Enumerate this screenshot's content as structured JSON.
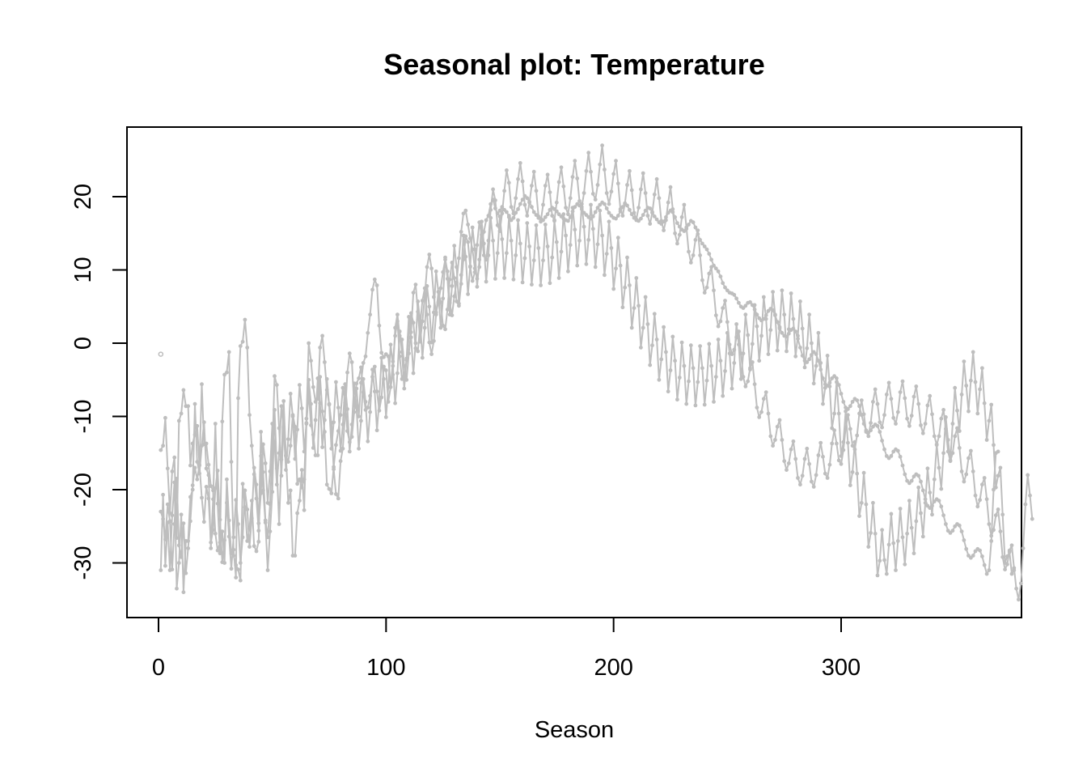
{
  "chart_data": {
    "type": "line",
    "title": "Seasonal plot: Temperature",
    "xlabel": "Season",
    "ylabel": "",
    "xlim": [
      1,
      365
    ],
    "ylim": [
      -35,
      27
    ],
    "x_ticks": [
      0,
      100,
      200,
      300
    ],
    "y_ticks": [
      -30,
      -20,
      -10,
      0,
      10,
      20
    ],
    "x_tick_labels": [
      "0",
      "100",
      "200",
      "300"
    ],
    "y_tick_labels": [
      "-30",
      "-20",
      "-10",
      "0",
      "10",
      "20"
    ],
    "grid": false,
    "legend": "none",
    "series_color": "#bebebe",
    "series": [
      {
        "start_x": 1,
        "values": [
          -1.5
        ]
      },
      {
        "start_x": 1,
        "values": [
          -14.6,
          -14.0,
          -10.2,
          -17.1,
          -23.2,
          -17.5,
          -15.6,
          -26.6,
          -10.6,
          -9.6,
          -6.4,
          -8.6,
          -8.6,
          -16.7,
          -13.7,
          -12.5,
          -11.3,
          -16.7,
          -5.6,
          -13.8,
          -13.7,
          -16.6,
          -19.5,
          -20.1,
          -26.0,
          -28.3,
          -27.2,
          -10.7,
          -4.3,
          -4.0,
          -1.2,
          -16.2,
          -28.2,
          -32.0,
          -7.5,
          -0.4,
          0.2,
          3.2,
          -0.6,
          -9.8,
          -14.0,
          -17.9,
          -21.2,
          -25.6,
          -12.1,
          -17.6,
          -24.2,
          -26.5,
          -22.0,
          -14.8,
          -4.5,
          -5.7,
          -11.6,
          -18.1,
          -11.4,
          -15.4,
          -16.2,
          -14.0,
          -9.8,
          -11.4,
          -19.2,
          -18.6,
          -19.7,
          -18.6,
          -10.3,
          0.0,
          -2.4,
          -6.0,
          -8.0,
          -7.6,
          -0.6,
          1.0,
          -2.6,
          -6.4,
          -8.3,
          -10.9,
          -17.2,
          -20.6,
          -21.2,
          -16.1,
          -14.4,
          -9.7,
          -4.0,
          -1.4,
          -2.6,
          -8.5,
          -6.2,
          -10.0,
          -5.4,
          -2.7,
          -1.8,
          1.4,
          3.9,
          7.3,
          8.7,
          7.9,
          2.4,
          -1.3,
          -1.9,
          -1.5,
          -1.8,
          -6.0,
          -4.3,
          2.1,
          3.9,
          1.0,
          0.5,
          -3.1,
          -5.0,
          -1.4,
          1.5,
          6.9,
          8.0,
          4.3,
          0.2,
          3.0,
          6.4,
          10.4,
          12.1,
          10.2,
          6.3,
          4.2,
          5.6,
          7.5,
          9.7,
          11.4,
          9.8,
          5.5,
          3.8,
          6.4,
          8.3,
          11.6,
          15.2,
          17.7,
          18.1,
          16.2,
          14.3,
          12.8,
          10.2,
          8.8,
          10.4,
          13.6,
          15.2,
          16.8,
          17.4,
          19.0,
          19.6,
          18.4,
          17.7,
          18.1,
          18.6,
          18.2,
          17.9,
          17.4,
          16.8,
          17.1,
          17.8,
          18.3,
          19.0,
          19.6,
          20.1,
          19.8,
          19.3,
          18.6,
          17.9,
          17.5,
          17.1,
          17.0,
          16.8,
          17.2,
          17.6,
          18.2,
          18.5,
          18.3,
          18.0,
          17.6,
          17.3,
          17.0,
          16.8,
          16.7,
          17.2,
          18.0,
          18.6,
          19.0,
          18.8,
          18.3,
          17.8,
          17.5,
          17.2,
          17.0,
          17.3,
          17.9,
          18.5,
          18.9,
          19.2,
          19.0,
          18.4,
          17.8,
          17.4,
          17.1,
          17.0,
          17.4,
          18.0,
          18.6,
          19.0,
          18.8,
          18.2,
          17.6,
          17.1,
          16.8,
          16.7,
          17.0,
          17.5,
          18.1,
          18.5,
          18.4,
          17.9,
          17.3,
          16.9,
          16.5,
          16.3,
          16.6,
          17.2,
          17.8,
          18.1,
          17.9,
          17.2,
          16.4,
          15.9,
          15.5,
          15.3,
          15.6,
          16.2,
          16.7,
          16.5,
          15.8,
          14.9,
          14.1,
          13.6,
          13.2,
          12.8,
          12.2,
          11.4,
          10.6,
          10.2,
          9.8,
          9.1,
          8.2,
          7.6,
          7.2,
          6.9,
          6.8,
          6.6,
          6.1,
          5.5,
          5.0,
          4.8,
          5.1,
          5.5,
          5.6,
          5.2,
          4.6,
          3.9,
          3.4,
          3.1,
          3.3,
          3.8,
          4.4,
          4.7,
          4.5,
          3.8,
          2.9,
          2.0,
          1.4,
          1.0,
          0.9,
          1.3,
          1.8,
          2.0,
          1.6,
          0.6,
          -0.6,
          -1.7,
          -2.4,
          -2.6,
          -2.2,
          -1.6,
          -1.2,
          -1.5,
          -2.4,
          -3.6,
          -4.8,
          -5.6,
          -5.8,
          -5.4,
          -4.8,
          -4.5,
          -4.8,
          -5.7,
          -6.9,
          -8.0,
          -8.8,
          -9.0,
          -8.6,
          -8.0,
          -7.6,
          -7.8,
          -8.6,
          -9.8,
          -11.0,
          -11.9,
          -12.2,
          -11.9,
          -11.4,
          -11.1,
          -11.3,
          -12.1,
          -13.3,
          -14.5,
          -15.4,
          -15.7,
          -15.4,
          -14.8,
          -14.5,
          -14.7,
          -15.5,
          -16.7,
          -17.9,
          -18.8,
          -19.1,
          -18.8,
          -18.2,
          -17.9,
          -18.1,
          -18.9,
          -20.1,
          -21.3,
          -22.2,
          -22.5,
          -22.2,
          -21.6,
          -21.3,
          -21.5,
          -22.3,
          -23.5,
          -24.7,
          -25.6,
          -25.9,
          -25.6,
          -25.0,
          -24.7,
          -24.9,
          -25.7,
          -26.9,
          -28.1,
          -29.0,
          -29.3,
          -29.0,
          -28.4,
          -28.1,
          -28.3,
          -29.1,
          -30.3,
          -31.5,
          -31.0,
          -27.0,
          -20.0,
          -15.0,
          -14.8
        ]
      },
      {
        "start_x": 1,
        "values": [
          -31.0,
          -20.7,
          -30.4,
          -24.5,
          -31.0,
          -23.5,
          -19.0,
          -33.5,
          -30.0,
          -23.4,
          -34.0,
          -27.0,
          -27.0,
          -21.0,
          -20.0,
          -8.3,
          -16.2,
          -17.8,
          -14.0,
          -10.8,
          -17.1,
          -18.0,
          -28.0,
          -21.3,
          -11.0,
          -21.9,
          -28.7,
          -25.7,
          -30.0,
          -18.6,
          -24.2,
          -28.7,
          -29.0,
          -30.3,
          -30.9,
          -32.4,
          -19.2,
          -22.4,
          -27.0,
          -25.3,
          -21.5,
          -27.7,
          -28.4,
          -27.1,
          -15.4,
          -20.1,
          -24.5,
          -31.0,
          -25.7,
          -20.3,
          -9.1,
          -17.1,
          -24.7,
          -15.9,
          -7.9,
          -15.3,
          -21.8,
          -20.1,
          -29.0,
          -29.0,
          -23.2,
          -21.5,
          -17.3,
          -22.8,
          -11.0,
          -6.7,
          -11.2,
          -12.5,
          -15.3,
          -15.3,
          -4.6,
          -9.3,
          -12.1,
          -19.3,
          -19.9,
          -20.5,
          -16.9,
          -13.9,
          -12.0,
          -9.8,
          -6.1,
          -8.1,
          -12.0,
          -13.5,
          -12.8,
          -9.4,
          -5.5,
          -4.8,
          -3.3,
          -6.7,
          -9.1,
          -8.8,
          -7.2,
          -4.6,
          -3.2,
          -6.6,
          -9.2,
          -7.4,
          -3.2,
          -3.7,
          -8.0,
          -6.0,
          -2.5,
          1.0,
          3.0,
          -1.8,
          -4.9,
          -4.5,
          -2.3,
          0.8,
          4.1,
          2.8,
          -0.7,
          -1.1,
          2.6,
          5.8,
          7.5,
          3.9,
          0.1,
          -1.5,
          0.3,
          3.9,
          7.0,
          5.6,
          2.4,
          1.9,
          4.6,
          8.7,
          11.0,
          8.9,
          5.7,
          5.1,
          8.1,
          11.4,
          14.6,
          13.8,
          10.4,
          8.5,
          9.7,
          13.4,
          16.5,
          14.8,
          12.0,
          11.4,
          14.0,
          18.2,
          21.0,
          19.5,
          16.1,
          15.3,
          17.7,
          20.8,
          23.6,
          21.9,
          18.6,
          17.7,
          19.8,
          22.4,
          24.6,
          22.1,
          18.9,
          17.4,
          19.2,
          21.5,
          23.4,
          20.8,
          17.3,
          16.6,
          18.9,
          21.5,
          23.0,
          20.6,
          17.4,
          16.8,
          19.2,
          22.0,
          24.0,
          21.4,
          18.5,
          17.6,
          19.8,
          22.7,
          24.9,
          22.5,
          19.4,
          18.6,
          20.5,
          23.5,
          26.0,
          23.4,
          20.4,
          19.6,
          21.6,
          24.4,
          27.0,
          23.7,
          20.5,
          19.0,
          20.7,
          23.1,
          24.9,
          21.8,
          18.3,
          17.4,
          19.1,
          21.6,
          23.5,
          20.9,
          17.8,
          16.9,
          18.5,
          21.0,
          23.2,
          20.5,
          17.4,
          16.3,
          17.8,
          20.3,
          22.4,
          19.8,
          16.7,
          15.4,
          16.8,
          19.2,
          21.3,
          18.3,
          15.0,
          13.6,
          14.8,
          17.2,
          18.9,
          15.8,
          12.5,
          11.0,
          12.0,
          14.1,
          15.4,
          12.0,
          8.6,
          6.9,
          7.6,
          9.5,
          10.4,
          7.2,
          3.8,
          2.3,
          3.0,
          4.8,
          5.8,
          2.9,
          -0.2,
          -1.5,
          -0.9,
          0.8,
          1.6,
          -1.4,
          -4.6,
          -5.9,
          -5.2,
          -3.4,
          -2.6,
          -5.6,
          -8.8,
          -10.1,
          -9.4,
          -7.6,
          -6.7,
          -9.6,
          -12.7,
          -14.0,
          -13.2,
          -11.4,
          -10.5,
          -13.2,
          -16.1,
          -17.3,
          -16.4,
          -14.5,
          -13.4,
          -15.8,
          -18.4,
          -19.3,
          -18.1,
          -15.8,
          -14.4,
          -16.5,
          -18.9,
          -19.6,
          -18.0,
          -15.3,
          -13.6,
          -15.5,
          -17.8,
          -18.4,
          -16.6,
          -13.7,
          -11.9,
          -13.7,
          -16.0,
          -16.5,
          -14.6,
          -11.6,
          -9.8,
          -11.7,
          -14.0,
          -14.5,
          -12.6,
          -9.6,
          -7.8,
          -9.7,
          -12.1,
          -12.7,
          -10.9,
          -8.0,
          -6.3,
          -8.3,
          -10.8,
          -11.5,
          -9.8,
          -7.0,
          -5.4,
          -7.6,
          -10.2,
          -11.0,
          -9.4,
          -6.7,
          -5.2,
          -7.5,
          -10.3,
          -11.3,
          -9.9,
          -7.3,
          -5.9,
          -8.3,
          -11.2,
          -12.3,
          -11.0,
          -8.5,
          -7.2,
          -9.7,
          -12.7,
          -13.9,
          -12.7,
          -10.3,
          -9.1,
          -11.7,
          -14.8,
          -16.1,
          -15.0,
          -12.7,
          -11.6,
          -14.3,
          -17.5,
          -18.9,
          -17.9,
          -15.7,
          -14.7,
          -17.5,
          -20.8,
          -22.3,
          -21.4,
          -19.3,
          -18.4,
          -21.3,
          -24.7,
          -26.3,
          -25.5,
          -23.5,
          -22.7,
          -25.7,
          -29.2,
          -30.9,
          -30.2,
          -28.3,
          -27.6,
          -30.7,
          -33.5,
          -35.0,
          -32.8,
          -28.0,
          -22.0,
          -18.0,
          -20.8,
          -24.0
        ]
      },
      {
        "start_x": 1,
        "values": [
          -23.0,
          -24.0,
          -26.8,
          -22.0,
          -24.3,
          -30.9,
          -24.7,
          -18.5,
          -27.6,
          -29.2,
          -24.6,
          -31.4,
          -28.0,
          -24.3,
          -19.4,
          -17.0,
          -18.6,
          -16.6,
          -21.1,
          -24.4,
          -19.6,
          -21.2,
          -27.2,
          -25.5,
          -19.8,
          -17.4,
          -24.1,
          -29.9,
          -26.9,
          -21.8,
          -26.4,
          -30.8,
          -26.5,
          -21.4,
          -24.7,
          -30.0,
          -26.5,
          -20.1,
          -22.7,
          -27.8,
          -23.9,
          -17.0,
          -19.3,
          -24.6,
          -20.5,
          -13.8,
          -16.4,
          -21.8,
          -17.5,
          -11.0,
          -13.8,
          -19.3,
          -15.0,
          -8.6,
          -11.6,
          -17.3,
          -13.1,
          -6.9,
          -10.0,
          -15.8,
          -11.8,
          -5.7,
          -8.9,
          -14.8,
          -10.9,
          -5.0,
          -8.3,
          -14.3,
          -10.5,
          -4.8,
          -8.2,
          -14.2,
          -10.5,
          -4.9,
          -8.4,
          -14.4,
          -10.8,
          -5.3,
          -8.8,
          -14.7,
          -11.1,
          -5.6,
          -9.0,
          -14.8,
          -11.1,
          -5.5,
          -8.8,
          -14.4,
          -10.6,
          -4.9,
          -8.0,
          -13.4,
          -9.4,
          -3.6,
          -6.6,
          -11.9,
          -7.8,
          -2.0,
          -4.9,
          -10.1,
          -6.0,
          -0.2,
          -3.1,
          -8.2,
          -4.1,
          1.6,
          -1.2,
          -6.2,
          -2.1,
          3.6,
          0.8,
          -4.1,
          0.0,
          5.7,
          2.9,
          -2.0,
          2.1,
          7.8,
          5.0,
          0.1,
          4.2,
          9.8,
          7.0,
          2.1,
          6.1,
          11.7,
          8.8,
          3.9,
          7.8,
          13.3,
          10.4,
          5.4,
          9.3,
          14.7,
          11.8,
          6.7,
          10.5,
          15.8,
          12.8,
          7.7,
          11.4,
          16.6,
          13.6,
          8.4,
          12.0,
          17.1,
          14.0,
          8.8,
          12.3,
          17.3,
          14.2,
          8.9,
          12.3,
          17.2,
          14.0,
          8.7,
          12.0,
          16.8,
          13.6,
          8.3,
          11.6,
          16.4,
          13.2,
          8.0,
          11.3,
          16.1,
          13.0,
          7.9,
          11.3,
          16.2,
          13.2,
          8.2,
          11.7,
          16.7,
          13.8,
          8.9,
          12.5,
          17.6,
          14.7,
          9.8,
          13.4,
          18.5,
          15.5,
          10.6,
          14.0,
          19.0,
          15.9,
          10.8,
          14.1,
          18.9,
          15.6,
          10.4,
          13.5,
          18.1,
          14.7,
          9.3,
          12.2,
          16.6,
          13.0,
          7.4,
          10.2,
          14.4,
          10.6,
          4.9,
          7.6,
          11.7,
          7.9,
          2.1,
          4.8,
          8.9,
          5.1,
          -0.6,
          2.1,
          6.3,
          2.6,
          -3.0,
          -0.3,
          4.0,
          0.5,
          -5.0,
          -2.2,
          2.2,
          -1.2,
          -6.6,
          -3.7,
          0.9,
          -2.4,
          -7.7,
          -4.7,
          0.1,
          -3.1,
          -8.3,
          -5.2,
          -0.3,
          -3.4,
          -8.5,
          -5.3,
          -0.4,
          -3.4,
          -8.4,
          -5.1,
          -0.1,
          -3.1,
          -8.0,
          -4.6,
          0.5,
          -2.4,
          -7.2,
          -3.8,
          1.4,
          -1.4,
          -6.2,
          -2.7,
          2.6,
          -0.2,
          -4.9,
          -1.4,
          3.9,
          1.1,
          -3.6,
          -0.1,
          5.2,
          2.3,
          -2.4,
          1.0,
          6.3,
          3.3,
          -1.5,
          1.8,
          7.0,
          3.9,
          -1.0,
          2.2,
          7.2,
          3.9,
          -1.1,
          1.9,
          6.8,
          3.3,
          -1.8,
          1.0,
          5.7,
          2.0,
          -3.3,
          -0.7,
          3.9,
          0.0,
          -5.5,
          -3.1,
          1.4,
          -2.7,
          -8.3,
          -6.1,
          -1.7,
          -5.9,
          -11.6,
          -9.6,
          -5.3,
          -9.6,
          -15.4,
          -13.5,
          -9.3,
          -13.6,
          -19.4,
          -17.6,
          -13.5,
          -17.8,
          -23.6,
          -21.8,
          -17.7,
          -22.0,
          -27.8,
          -25.9,
          -21.8,
          -26.0,
          -31.7,
          -29.7,
          -25.5,
          -29.6,
          -31.5,
          -27.5,
          -23.3,
          -27.3,
          -31.0,
          -27.0,
          -22.6,
          -26.5,
          -30.2,
          -26.0,
          -21.5,
          -25.2,
          -28.7,
          -24.3,
          -19.7,
          -23.2,
          -26.4,
          -21.8,
          -17.1,
          -20.4,
          -23.4,
          -18.6,
          -13.8,
          -17.0,
          -19.9,
          -15.0,
          -10.1,
          -13.2,
          -16.0,
          -11.0,
          -6.1,
          -9.2,
          -12.0,
          -7.0,
          -2.5,
          -5.8,
          -9.3,
          -5.1,
          -1.2,
          -5.3,
          -9.6,
          -6.3,
          -3.4,
          -8.2,
          -13.2,
          -10.6,
          -8.4,
          -13.9,
          -19.7,
          -18.1,
          -17.0,
          -23.4,
          -30.0,
          -29.1,
          -28.5,
          -31.5,
          -31.0
        ]
      }
    ]
  }
}
